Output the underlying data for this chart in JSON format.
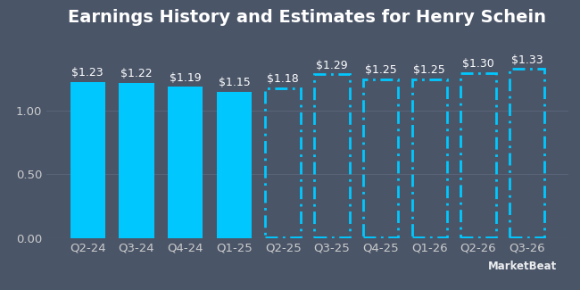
{
  "title": "Earnings History and Estimates for Henry Schein",
  "background_color": "#4a5568",
  "bar_color_solid": "#00c8ff",
  "bar_color_dashed": "#00c8ff",
  "categories": [
    "Q2-24",
    "Q3-24",
    "Q4-24",
    "Q1-25",
    "Q2-25",
    "Q3-25",
    "Q4-25",
    "Q1-26",
    "Q2-26",
    "Q3-26"
  ],
  "values": [
    1.23,
    1.22,
    1.19,
    1.15,
    1.18,
    1.29,
    1.25,
    1.25,
    1.3,
    1.33
  ],
  "labels": [
    "$1.23",
    "$1.22",
    "$1.19",
    "$1.15",
    "$1.18",
    "$1.29",
    "$1.25",
    "$1.25",
    "$1.30",
    "$1.33"
  ],
  "is_estimate": [
    false,
    false,
    false,
    false,
    true,
    true,
    true,
    true,
    true,
    true
  ],
  "ylim": [
    0,
    1.6
  ],
  "yticks": [
    0.0,
    0.5,
    1.0
  ],
  "title_color": "#ffffff",
  "label_color": "#ffffff",
  "axis_color": "#cccccc",
  "grid_color": "#5a6478",
  "title_fontsize": 14,
  "label_fontsize": 9,
  "tick_fontsize": 9.5,
  "watermark": "MarketBeat"
}
